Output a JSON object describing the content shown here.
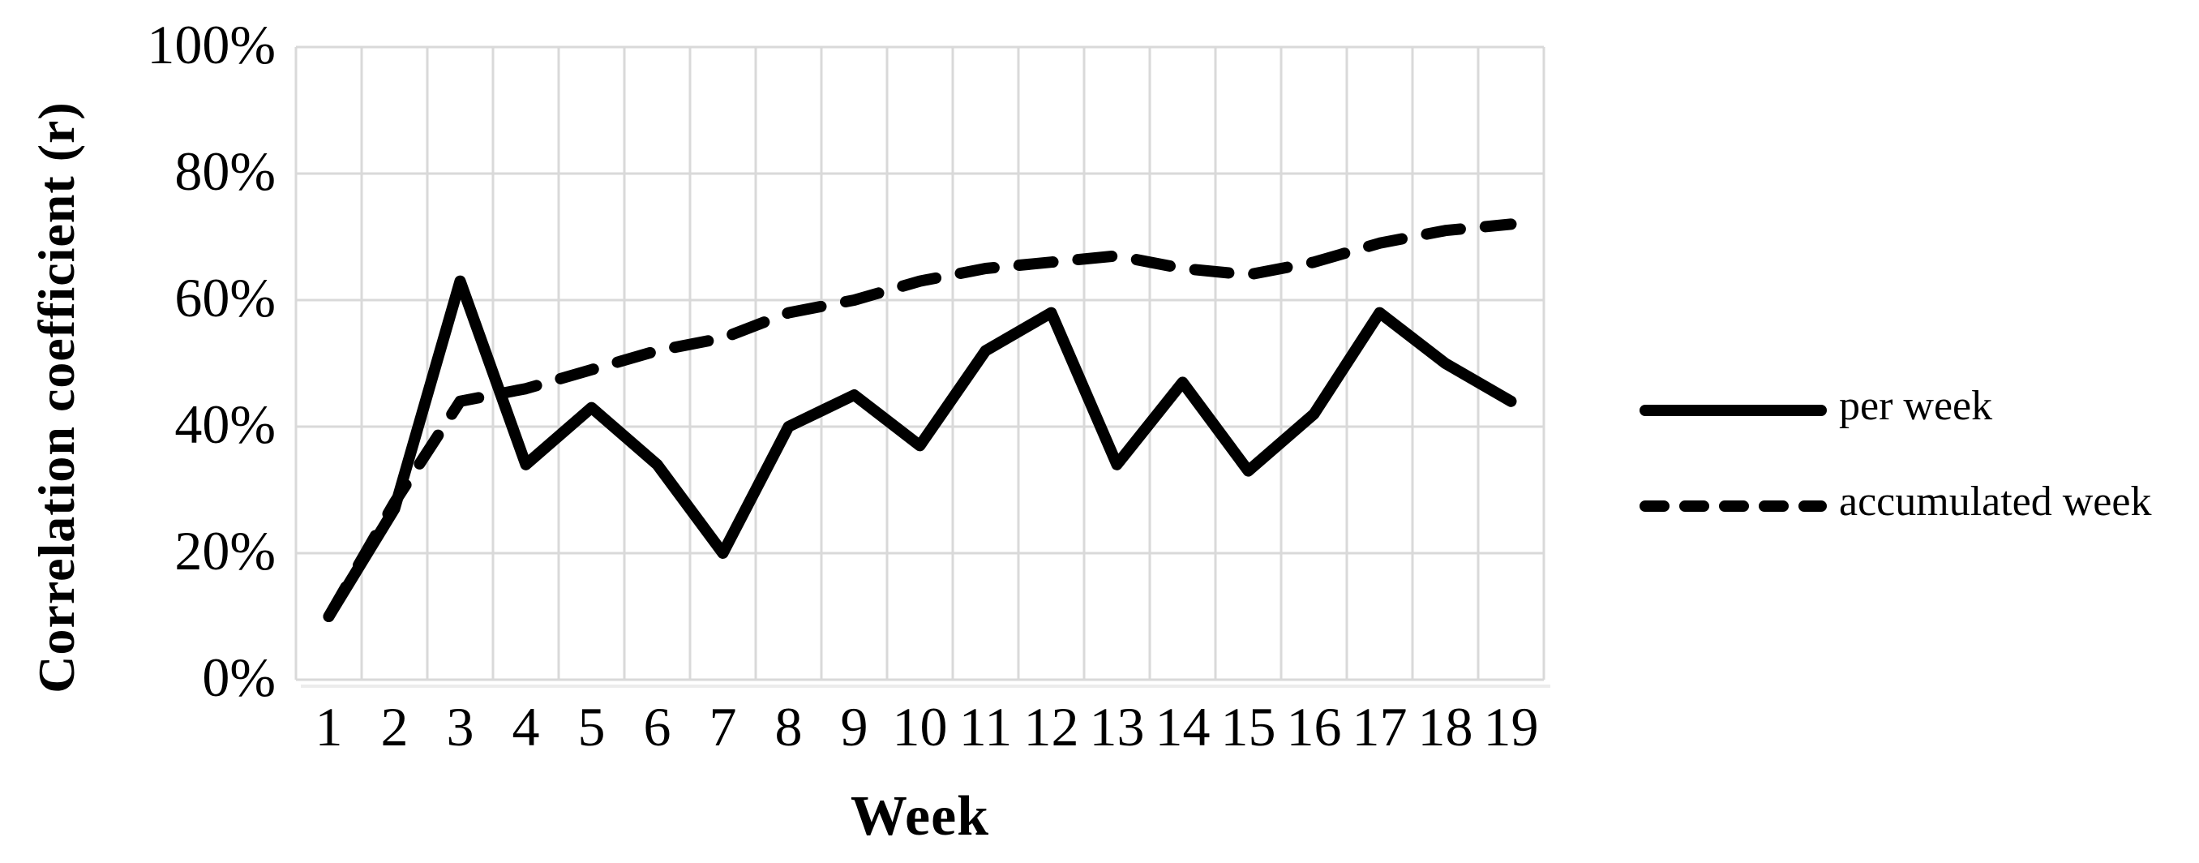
{
  "chart_data": {
    "type": "line",
    "title": "",
    "xlabel": "Week",
    "ylabel": "Correlation coefficient (r)",
    "x": [
      1,
      2,
      3,
      4,
      5,
      6,
      7,
      8,
      9,
      10,
      11,
      12,
      13,
      14,
      15,
      16,
      17,
      18,
      19
    ],
    "yticks": [
      "0%",
      "20%",
      "40%",
      "60%",
      "80%",
      "100%"
    ],
    "ylim": [
      0,
      100
    ],
    "grid": true,
    "legend_position": "right",
    "series": [
      {
        "name": "per week",
        "line_style": "solid",
        "color": "#000000",
        "values": [
          10,
          27,
          63,
          34,
          43,
          34,
          20,
          40,
          45,
          37,
          52,
          58,
          34,
          47,
          33,
          42,
          58,
          50,
          44
        ]
      },
      {
        "name": "accumulated week",
        "line_style": "dashed",
        "color": "#000000",
        "values": [
          10,
          28,
          44,
          46,
          49,
          52,
          54,
          58,
          60,
          63,
          65,
          66,
          67,
          65,
          64,
          66,
          69,
          71,
          72
        ]
      }
    ]
  },
  "colors": {
    "line": "#000000",
    "gridline": "#d9d9d9",
    "axis_shadow": "#ececec",
    "background": "#ffffff",
    "text": "#000000"
  }
}
